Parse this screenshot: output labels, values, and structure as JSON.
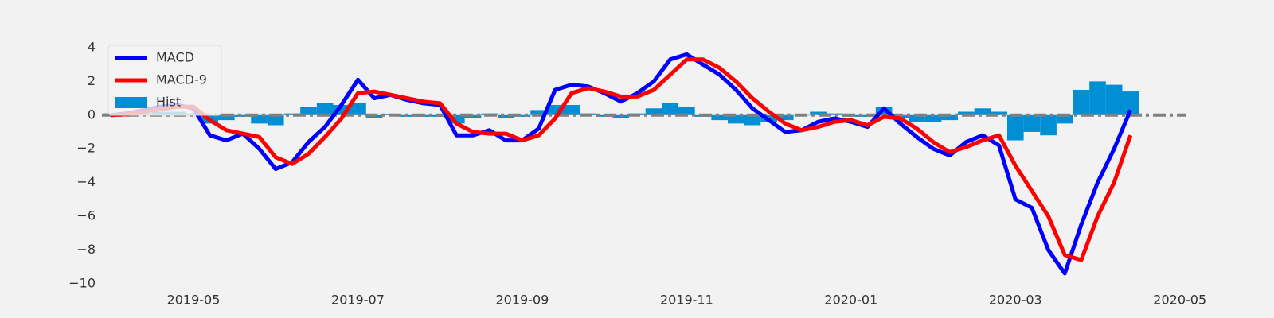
{
  "chart_data": {
    "type": "line",
    "x": [
      3.0,
      3.2,
      3.4,
      3.6,
      3.8,
      4.0,
      4.2,
      4.4,
      4.6,
      4.8,
      5.0,
      5.2,
      5.4,
      5.6,
      5.8,
      6.0,
      6.2,
      6.4,
      6.6,
      6.8,
      7.0,
      7.2,
      7.4,
      7.6,
      7.8,
      8.0,
      8.2,
      8.4,
      8.6,
      8.8,
      9.0,
      9.2,
      9.4,
      9.6,
      9.8,
      10.0,
      10.2,
      10.4,
      10.6,
      10.8,
      11.0,
      11.2,
      11.4,
      11.6,
      11.8,
      12.0,
      12.2,
      12.4,
      12.6,
      12.8,
      13.0,
      13.2,
      13.4,
      13.6,
      13.8,
      14.0,
      14.2,
      14.4,
      14.6,
      14.8,
      15.0,
      15.2,
      15.4
    ],
    "series": [
      {
        "name": "Hist",
        "type": "bar",
        "color": "#008fd5",
        "values": [
          0.1,
          0.1,
          0.1,
          0.2,
          0.2,
          0.1,
          -0.5,
          -0.3,
          -0.1,
          -0.5,
          -0.6,
          0.1,
          0.5,
          0.7,
          0.6,
          0.7,
          -0.2,
          0.05,
          -0.1,
          -0.1,
          -0.1,
          -0.5,
          -0.2,
          0.1,
          -0.2,
          -0.1,
          0.3,
          0.6,
          0.6,
          0.1,
          -0.1,
          -0.2,
          0.1,
          0.4,
          0.7,
          0.5,
          -0.1,
          -0.3,
          -0.5,
          -0.6,
          -0.4,
          -0.3,
          0,
          0.2,
          0.1,
          -0.1,
          -0.1,
          0.5,
          -0.2,
          -0.4,
          -0.4,
          -0.3,
          0.2,
          0.4,
          0.2,
          -1.5,
          -1.0,
          -1.2,
          -0.5,
          1.5,
          2.0,
          1.8,
          1.4
        ]
      },
      {
        "name": "MACD",
        "type": "line",
        "color": "#0000ff",
        "values": [
          0,
          0.1,
          0.3,
          0.5,
          0.6,
          0.4,
          -1.2,
          -1.5,
          -1.1,
          -2.0,
          -3.2,
          -2.8,
          -1.6,
          -0.7,
          0.6,
          2.1,
          1.0,
          1.2,
          0.9,
          0.7,
          0.6,
          -1.2,
          -1.2,
          -0.9,
          -1.5,
          -1.5,
          -0.8,
          1.5,
          1.8,
          1.7,
          1.3,
          0.8,
          1.3,
          2.0,
          3.3,
          3.6,
          3.0,
          2.4,
          1.5,
          0.4,
          -0.3,
          -1.0,
          -0.9,
          -0.4,
          -0.2,
          -0.4,
          -0.7,
          0.4,
          -0.5,
          -1.3,
          -2.0,
          -2.4,
          -1.6,
          -1.2,
          -1.8,
          -5.0,
          -5.5,
          -8.0,
          -9.4,
          -6.5,
          -4.0,
          -2.0,
          0.3
        ]
      },
      {
        "name": "MACD-9",
        "type": "line",
        "color": "#ff0000",
        "values": [
          0,
          0.05,
          0.2,
          0.35,
          0.5,
          0.5,
          -0.3,
          -0.9,
          -1.1,
          -1.3,
          -2.5,
          -2.9,
          -2.3,
          -1.3,
          -0.2,
          1.3,
          1.4,
          1.2,
          1.0,
          0.8,
          0.7,
          -0.5,
          -1.0,
          -1.1,
          -1.1,
          -1.5,
          -1.2,
          -0.2,
          1.3,
          1.6,
          1.4,
          1.1,
          1.1,
          1.5,
          2.4,
          3.3,
          3.3,
          2.8,
          2.0,
          1.0,
          0.2,
          -0.5,
          -0.9,
          -0.7,
          -0.4,
          -0.3,
          -0.6,
          -0.1,
          -0.2,
          -0.8,
          -1.6,
          -2.2,
          -1.9,
          -1.5,
          -1.2,
          -3.0,
          -4.5,
          -6.0,
          -8.3,
          -8.6,
          -6.0,
          -4.0,
          -1.2
        ]
      }
    ],
    "hline": 0,
    "xlim": [
      2.886,
      16.08
    ],
    "xticks": [
      {
        "value": 4,
        "label": "2019-05"
      },
      {
        "value": 6,
        "label": "2019-07"
      },
      {
        "value": 8,
        "label": "2019-09"
      },
      {
        "value": 10,
        "label": "2019-11"
      },
      {
        "value": 12,
        "label": "2020-01"
      },
      {
        "value": 14,
        "label": "2020-03"
      },
      {
        "value": 16,
        "label": "2020-05"
      }
    ],
    "ylim": [
      -10.2,
      4.8
    ],
    "yticks": [
      4,
      2,
      0,
      {
        "value": -2,
        "label": "−2"
      },
      {
        "value": -4,
        "label": "−4"
      },
      {
        "value": -6,
        "label": "−6"
      },
      {
        "value": -8,
        "label": "−8"
      },
      {
        "value": -10,
        "label": "−10"
      }
    ],
    "legend": "upper left"
  }
}
